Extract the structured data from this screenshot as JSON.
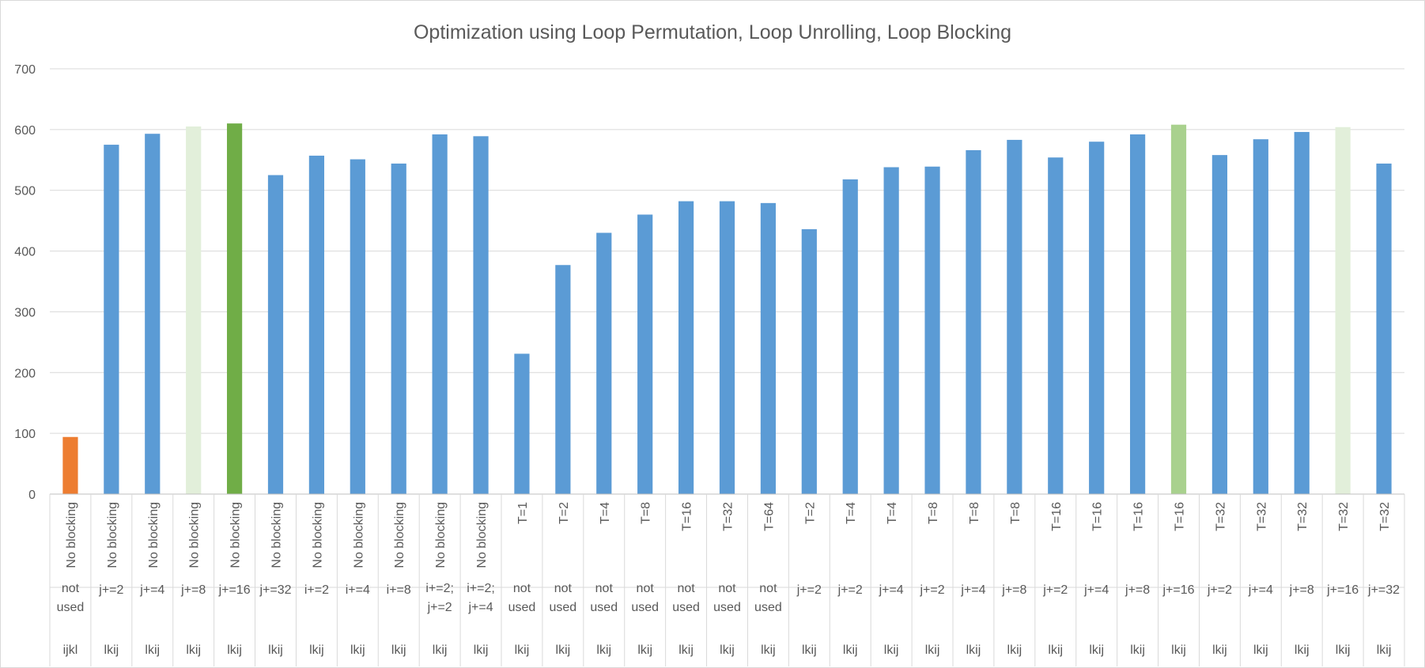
{
  "chart_data": {
    "type": "bar",
    "title": "Optimization using Loop Permutation, Loop Unrolling, Loop Blocking",
    "xlabel": "",
    "ylabel": "",
    "ylim": [
      0,
      700
    ],
    "yticks": [
      "0",
      "100",
      "200",
      "300",
      "400",
      "500",
      "600",
      "700"
    ],
    "grid": true,
    "legend": "none",
    "categories": [
      {
        "blocking": "No blocking",
        "unrolling": [
          "not",
          "used"
        ],
        "order": "ijkl"
      },
      {
        "blocking": "No blocking",
        "unrolling": [
          "j+=2"
        ],
        "order": "lkij"
      },
      {
        "blocking": "No blocking",
        "unrolling": [
          "j+=4"
        ],
        "order": "lkij"
      },
      {
        "blocking": "No blocking",
        "unrolling": [
          "j+=8"
        ],
        "order": "lkij"
      },
      {
        "blocking": "No blocking",
        "unrolling": [
          "j+=16"
        ],
        "order": "lkij"
      },
      {
        "blocking": "No blocking",
        "unrolling": [
          "j+=32"
        ],
        "order": "lkij"
      },
      {
        "blocking": "No blocking",
        "unrolling": [
          "i+=2"
        ],
        "order": "lkij"
      },
      {
        "blocking": "No blocking",
        "unrolling": [
          "i+=4"
        ],
        "order": "lkij"
      },
      {
        "blocking": "No blocking",
        "unrolling": [
          "i+=8"
        ],
        "order": "lkij"
      },
      {
        "blocking": "No blocking",
        "unrolling": [
          "i+=2;",
          "j+=2"
        ],
        "order": "lkij"
      },
      {
        "blocking": "No blocking",
        "unrolling": [
          "i+=2;",
          "j+=4"
        ],
        "order": "lkij"
      },
      {
        "blocking": "T=1",
        "unrolling": [
          "not",
          "used"
        ],
        "order": "lkij"
      },
      {
        "blocking": "T=2",
        "unrolling": [
          "not",
          "used"
        ],
        "order": "lkij"
      },
      {
        "blocking": "T=4",
        "unrolling": [
          "not",
          "used"
        ],
        "order": "lkij"
      },
      {
        "blocking": "T=8",
        "unrolling": [
          "not",
          "used"
        ],
        "order": "lkij"
      },
      {
        "blocking": "T=16",
        "unrolling": [
          "not",
          "used"
        ],
        "order": "lkij"
      },
      {
        "blocking": "T=32",
        "unrolling": [
          "not",
          "used"
        ],
        "order": "lkij"
      },
      {
        "blocking": "T=64",
        "unrolling": [
          "not",
          "used"
        ],
        "order": "lkij"
      },
      {
        "blocking": "T=2",
        "unrolling": [
          "j+=2"
        ],
        "order": "lkij"
      },
      {
        "blocking": "T=4",
        "unrolling": [
          "j+=2"
        ],
        "order": "lkij"
      },
      {
        "blocking": "T=4",
        "unrolling": [
          "j+=4"
        ],
        "order": "lkij"
      },
      {
        "blocking": "T=8",
        "unrolling": [
          "j+=2"
        ],
        "order": "lkij"
      },
      {
        "blocking": "T=8",
        "unrolling": [
          "j+=4"
        ],
        "order": "lkij"
      },
      {
        "blocking": "T=8",
        "unrolling": [
          "j+=8"
        ],
        "order": "lkij"
      },
      {
        "blocking": "T=16",
        "unrolling": [
          "j+=2"
        ],
        "order": "lkij"
      },
      {
        "blocking": "T=16",
        "unrolling": [
          "j+=4"
        ],
        "order": "lkij"
      },
      {
        "blocking": "T=16",
        "unrolling": [
          "j+=8"
        ],
        "order": "lkij"
      },
      {
        "blocking": "T=16",
        "unrolling": [
          "j+=16"
        ],
        "order": "lkij"
      },
      {
        "blocking": "T=32",
        "unrolling": [
          "j+=2"
        ],
        "order": "lkij"
      },
      {
        "blocking": "T=32",
        "unrolling": [
          "j+=4"
        ],
        "order": "lkij"
      },
      {
        "blocking": "T=32",
        "unrolling": [
          "j+=8"
        ],
        "order": "lkij"
      },
      {
        "blocking": "T=32",
        "unrolling": [
          "j+=16"
        ],
        "order": "lkij"
      },
      {
        "blocking": "T=32",
        "unrolling": [
          "j+=32"
        ],
        "order": "lkij"
      }
    ],
    "values": [
      94,
      575,
      593,
      605,
      610,
      525,
      557,
      551,
      544,
      592,
      589,
      231,
      377,
      430,
      460,
      482,
      482,
      479,
      436,
      518,
      538,
      539,
      566,
      583,
      554,
      580,
      592,
      608,
      558,
      584,
      596,
      604,
      544
    ],
    "bar_colors": [
      "#ED7D31",
      "#5B9BD5",
      "#5B9BD5",
      "#E2EFDA",
      "#70AD47",
      "#5B9BD5",
      "#5B9BD5",
      "#5B9BD5",
      "#5B9BD5",
      "#5B9BD5",
      "#5B9BD5",
      "#5B9BD5",
      "#5B9BD5",
      "#5B9BD5",
      "#5B9BD5",
      "#5B9BD5",
      "#5B9BD5",
      "#5B9BD5",
      "#5B9BD5",
      "#5B9BD5",
      "#5B9BD5",
      "#5B9BD5",
      "#5B9BD5",
      "#5B9BD5",
      "#5B9BD5",
      "#5B9BD5",
      "#5B9BD5",
      "#A9D18E",
      "#5B9BD5",
      "#5B9BD5",
      "#5B9BD5",
      "#E2EFDA",
      "#5B9BD5"
    ]
  }
}
